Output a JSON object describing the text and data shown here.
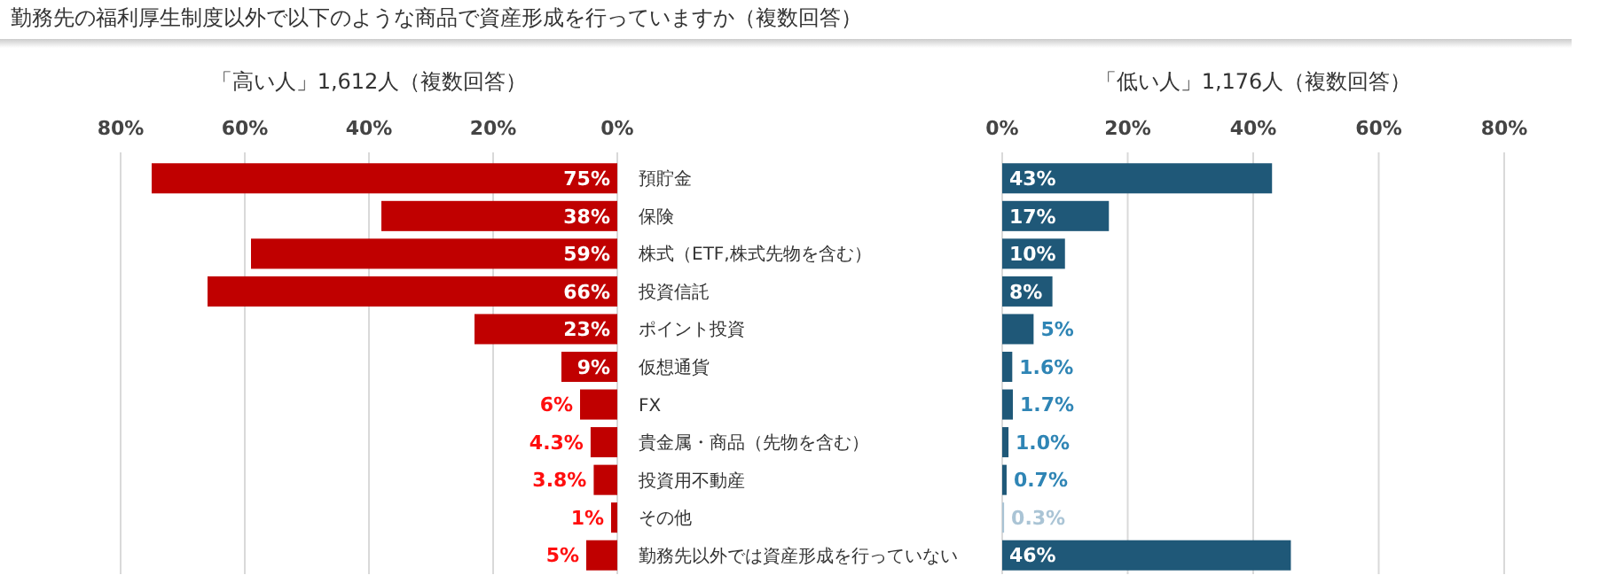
{
  "chart_data": [
    {
      "type": "bar",
      "orientation": "horizontal",
      "title": "勤務先の福利厚生制度以外で以下のような商品で資産形成を行っていますか（複数回答）",
      "subtitle": "「高い人」1,612人（複数回答）",
      "categories": [
        "預貯金",
        "保険",
        "株式（ETF,株式先物を含む）",
        "投資信託",
        "ポイント投資",
        "仮想通貨",
        "FX",
        "貴金属・商品（先物を含む）",
        "投資用不動産",
        "その他",
        "勤務先以外では資産形成を行っていない"
      ],
      "values": [
        75,
        38,
        59,
        66,
        23,
        9,
        6,
        4.3,
        3.8,
        1,
        5
      ],
      "colors": [
        "#c00000",
        "#c00000",
        "#c00000",
        "#c00000",
        "#c00000",
        "#c00000",
        "#c00000",
        "#c00000",
        "#c00000",
        "#c00000",
        "#c00000"
      ],
      "value_labels": [
        "75%",
        "38%",
        "59%",
        "66%",
        "23%",
        "9%",
        "6%",
        "4.3%",
        "3.8%",
        "1%",
        "5%"
      ],
      "xlim": [
        80,
        0
      ],
      "xticks": [
        {
          "value": 80,
          "label": "80%"
        },
        {
          "value": 60,
          "label": "60%"
        },
        {
          "value": 40,
          "label": "40%"
        },
        {
          "value": 20,
          "label": "20%"
        },
        {
          "value": 0,
          "label": "0%"
        }
      ],
      "grid": "x"
    },
    {
      "type": "bar",
      "orientation": "horizontal",
      "subtitle": "「低い人」1,176人（複数回答）",
      "categories": [
        null,
        null,
        null,
        null,
        null,
        null,
        null,
        null,
        null,
        null,
        null
      ],
      "values": [
        43,
        17,
        10,
        8,
        5,
        1.6,
        1.7,
        1.0,
        0.7,
        0.3,
        46
      ],
      "colors": [
        "#1f5878",
        "#1f5878",
        "#1f5878",
        "#1f5878",
        "#1f5878",
        "#1f5878",
        "#1f5878",
        "#1f5878",
        "#1f5878",
        "#a9c3d4",
        "#1f5878"
      ],
      "value_labels": [
        "43%",
        "17%",
        "10%",
        "8%",
        "5%",
        "1.6%",
        "1.7%",
        "1.0%",
        "0.7%",
        "0.3%",
        "46%"
      ],
      "xlim": [
        0,
        80
      ],
      "xticks": [
        {
          "value": 0,
          "label": "0%"
        },
        {
          "value": 20,
          "label": "20%"
        },
        {
          "value": 40,
          "label": "40%"
        },
        {
          "value": 60,
          "label": "60%"
        },
        {
          "value": 80,
          "label": "80%"
        }
      ],
      "grid": "x",
      "tick_labels": "x"
    }
  ]
}
